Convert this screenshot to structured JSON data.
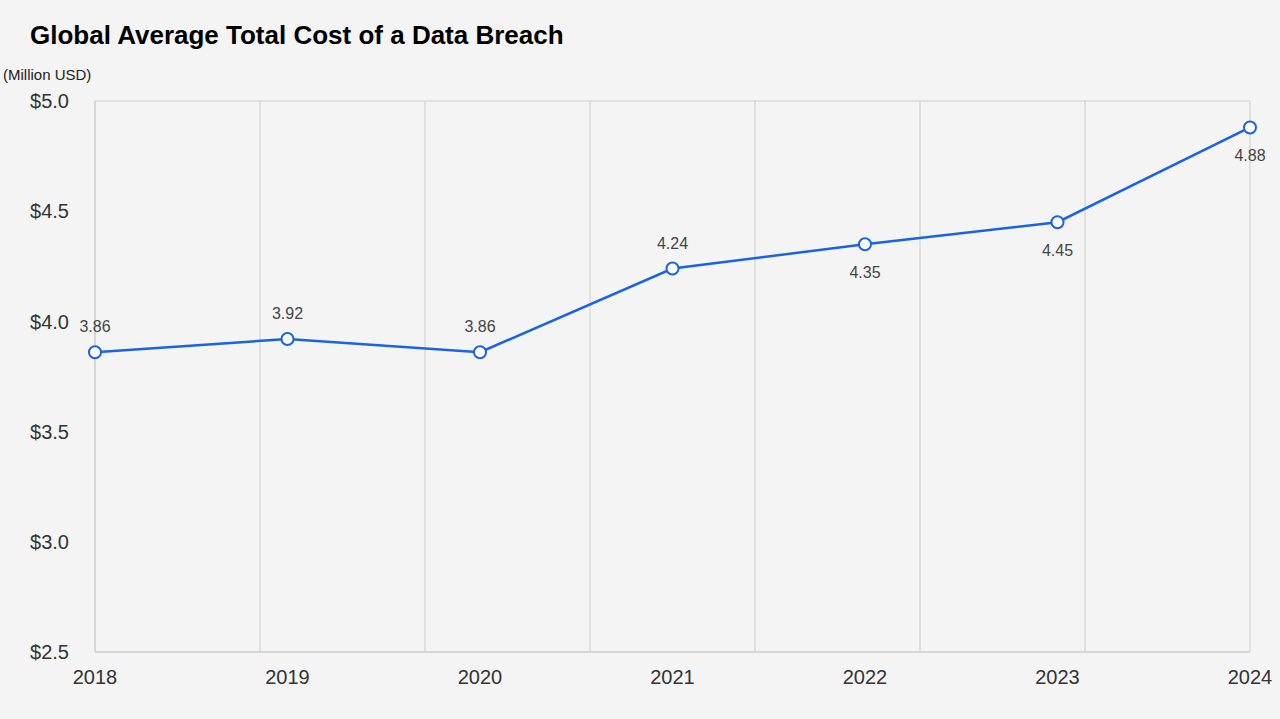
{
  "chart_data": {
    "type": "line",
    "title": "Global Average Total Cost of a Data Breach",
    "y_label": "(Million USD)",
    "categories": [
      "2018",
      "2019",
      "2020",
      "2021",
      "2022",
      "2023",
      "2024"
    ],
    "values": [
      3.86,
      3.92,
      3.86,
      4.24,
      4.35,
      4.45,
      4.88
    ],
    "color": "#1a62e6",
    "ylim": [
      2.5,
      5.0
    ],
    "yticks": [
      {
        "value": 2.5,
        "label": "$2.5"
      },
      {
        "value": 3.0,
        "label": "$3.0"
      },
      {
        "value": 3.5,
        "label": "$3.5"
      },
      {
        "value": 4.0,
        "label": "$4.0"
      },
      {
        "value": 4.5,
        "label": "$4.5"
      },
      {
        "value": 5.0,
        "label": "$5.0"
      }
    ],
    "grid": true,
    "data_labels": true,
    "marker": "circle"
  }
}
